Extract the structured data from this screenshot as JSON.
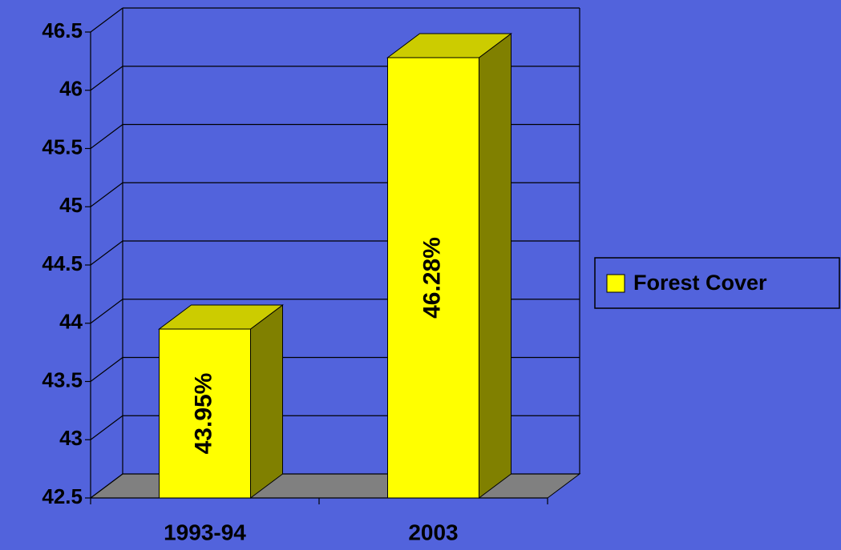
{
  "chart_data": {
    "type": "bar3d",
    "categories": [
      "1993-94",
      "2003"
    ],
    "series": [
      {
        "name": "Forest Cover",
        "color": "#ffff00",
        "values": [
          43.95,
          46.28
        ],
        "value_labels": [
          "43.95%",
          "46.28%"
        ]
      }
    ],
    "ylim": [
      42.5,
      46.5
    ],
    "yticks": [
      42.5,
      43,
      43.5,
      44,
      44.5,
      45,
      45.5,
      46,
      46.5
    ],
    "grid": true,
    "legend": "right"
  }
}
